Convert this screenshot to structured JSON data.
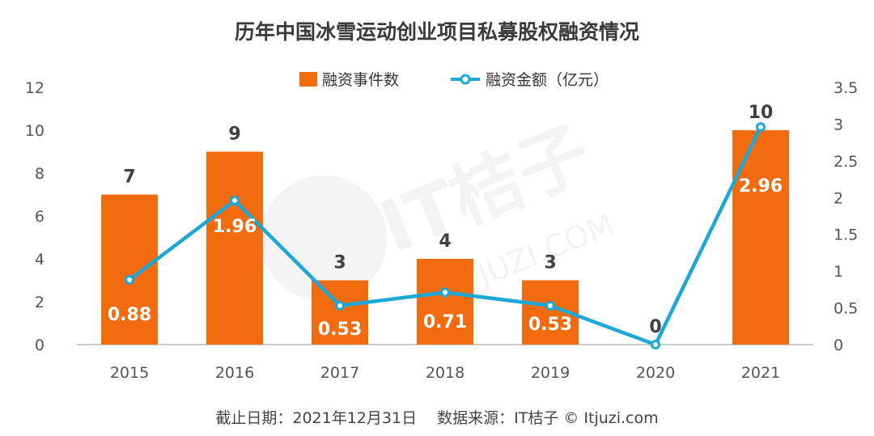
{
  "colors": {
    "bar": "#f26b0f",
    "line": "#1ba7d8",
    "axis": "#bbbbbb",
    "text": "#404040"
  },
  "watermark": {
    "text_main": "IT桔子",
    "text_url": "ITJUZI.COM"
  },
  "chart_data": {
    "type": "bar",
    "title": "历年中国冰雪运动创业项目私募股权融资情况",
    "categories": [
      "2015",
      "2016",
      "2017",
      "2018",
      "2019",
      "2020",
      "2021"
    ],
    "series": [
      {
        "name": "融资事件数",
        "type": "bar",
        "axis": "left",
        "values": [
          7,
          9,
          3,
          4,
          3,
          0,
          10
        ]
      },
      {
        "name": "融资金额（亿元）",
        "type": "line",
        "axis": "right",
        "values": [
          0.88,
          1.96,
          0.53,
          0.71,
          0.53,
          0,
          2.96
        ]
      }
    ],
    "y_left": {
      "min": 0,
      "max": 12,
      "ticks": [
        0,
        2,
        4,
        6,
        8,
        10,
        12
      ]
    },
    "y_right": {
      "min": 0,
      "max": 3.5,
      "ticks": [
        "0",
        "0.5",
        "1",
        "1.5",
        "2",
        "2.5",
        "3",
        "3.5"
      ]
    },
    "legend_position": "top-center",
    "grid": false,
    "footer": "截止日期：2021年12月31日　 数据来源：IT桔子 © Itjuzi.com"
  }
}
